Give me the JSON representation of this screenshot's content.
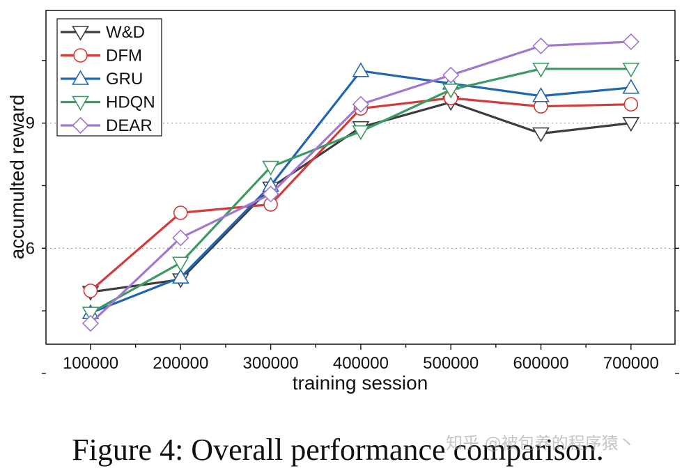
{
  "chart_data": {
    "type": "line",
    "title": "",
    "xlabel": "training session",
    "ylabel": "accumulted reward",
    "categories": [
      "100000",
      "200000",
      "300000",
      "400000",
      "500000",
      "600000",
      "700000"
    ],
    "ylim": [
      3.7,
      11.7
    ],
    "yticks": [
      6,
      9
    ],
    "grid": "horizontal dotted at y ticks",
    "legend_position": "top-left",
    "series": [
      {
        "name": "W&D",
        "color": "#3d3d3d",
        "marker": "triangle-down",
        "values": [
          4.95,
          5.25,
          7.45,
          8.9,
          9.5,
          8.75,
          9.0
        ]
      },
      {
        "name": "DFM",
        "color": "#d33b3b",
        "marker": "circle",
        "values": [
          4.98,
          6.85,
          7.05,
          9.35,
          9.6,
          9.4,
          9.45
        ]
      },
      {
        "name": "GRU",
        "color": "#2166b0",
        "marker": "triangle-up",
        "values": [
          4.45,
          5.3,
          7.5,
          10.25,
          9.95,
          9.65,
          9.85
        ]
      },
      {
        "name": "HDQN",
        "color": "#3c9a62",
        "marker": "triangle-down",
        "values": [
          4.45,
          5.65,
          7.95,
          8.8,
          9.8,
          10.3,
          10.3
        ]
      },
      {
        "name": "DEAR",
        "color": "#a178d0",
        "marker": "diamond",
        "values": [
          4.2,
          6.25,
          7.3,
          9.45,
          10.15,
          10.85,
          10.95
        ]
      }
    ]
  },
  "caption": "Figure 4: Overall performance comparison.",
  "watermark": "知乎 @被包养的程序猿丶"
}
